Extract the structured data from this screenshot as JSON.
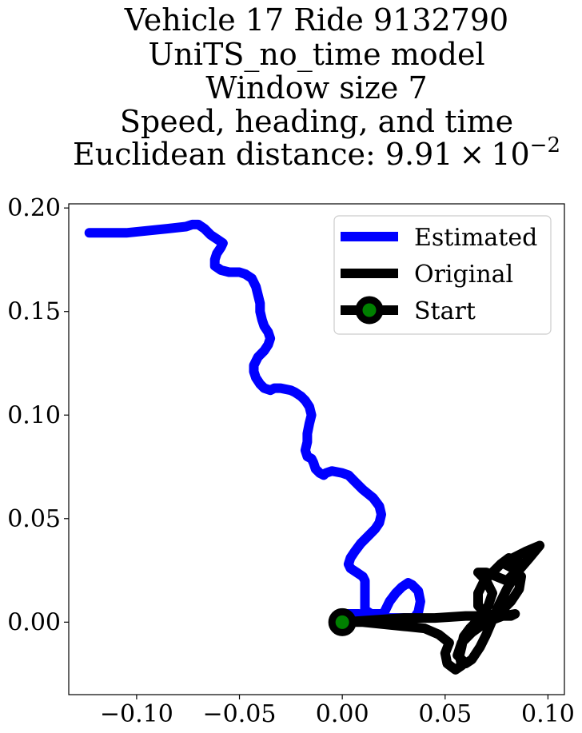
{
  "chart_data": {
    "type": "line",
    "title_lines": [
      "Vehicle 17 Ride 9132790",
      "UniTS_no_time model",
      "Window size 7",
      "Speed, heading, and time"
    ],
    "title_metric_label": "Euclidean distance: ",
    "title_metric_mantissa": "9.91",
    "title_metric_times": "×",
    "title_metric_base": "10",
    "title_metric_exponent": "−2",
    "xlabel": "",
    "ylabel": "",
    "xlim": [
      -0.133,
      0.108
    ],
    "ylim": [
      -0.035,
      0.202
    ],
    "x_ticks": [
      -0.1,
      -0.05,
      0.0,
      0.05,
      0.1
    ],
    "x_tick_labels": [
      "−0.10",
      "−0.05",
      "0.00",
      "0.05",
      "0.10"
    ],
    "y_ticks": [
      0.0,
      0.05,
      0.1,
      0.15,
      0.2
    ],
    "y_tick_labels": [
      "0.00",
      "0.05",
      "0.10",
      "0.15",
      "0.20"
    ],
    "grid": false,
    "legend_position": "top-right",
    "series": [
      {
        "name": "Estimated",
        "color": "#0000ff",
        "points": [
          [
            0,
            0
          ],
          [
            0.001,
            0.003
          ],
          [
            0.003,
            0.004
          ],
          [
            0.008,
            0.004
          ],
          [
            0.012,
            0.003
          ],
          [
            0.018,
            0.002
          ],
          [
            0.025,
            0.002
          ],
          [
            0.03,
            0.002
          ],
          [
            0.035,
            0.002
          ],
          [
            0.037,
            0.005
          ],
          [
            0.038,
            0.01
          ],
          [
            0.037,
            0.015
          ],
          [
            0.034,
            0.018
          ],
          [
            0.032,
            0.019
          ],
          [
            0.029,
            0.017
          ],
          [
            0.026,
            0.014
          ],
          [
            0.023,
            0.01
          ],
          [
            0.021,
            0.006
          ],
          [
            0.02,
            0.004
          ],
          [
            0.014,
            0.004
          ],
          [
            0.011,
            0.006
          ],
          [
            0.011,
            0.012
          ],
          [
            0.011,
            0.02
          ],
          [
            0.01,
            0.022
          ],
          [
            0.007,
            0.024
          ],
          [
            0.004,
            0.026
          ],
          [
            0.003,
            0.028
          ],
          [
            0.004,
            0.031
          ],
          [
            0.006,
            0.034
          ],
          [
            0.009,
            0.038
          ],
          [
            0.013,
            0.042
          ],
          [
            0.016,
            0.045
          ],
          [
            0.018,
            0.048
          ],
          [
            0.019,
            0.052
          ],
          [
            0.018,
            0.056
          ],
          [
            0.015,
            0.06
          ],
          [
            0.01,
            0.064
          ],
          [
            0.006,
            0.068
          ],
          [
            0.003,
            0.071
          ],
          [
            0.0,
            0.072
          ],
          [
            -0.005,
            0.073
          ],
          [
            -0.008,
            0.072
          ],
          [
            -0.009,
            0.071
          ],
          [
            -0.011,
            0.072
          ],
          [
            -0.013,
            0.074
          ],
          [
            -0.014,
            0.077
          ],
          [
            -0.015,
            0.079
          ],
          [
            -0.017,
            0.08
          ],
          [
            -0.018,
            0.083
          ],
          [
            -0.017,
            0.087
          ],
          [
            -0.017,
            0.091
          ],
          [
            -0.016,
            0.096
          ],
          [
            -0.015,
            0.1
          ],
          [
            -0.016,
            0.104
          ],
          [
            -0.018,
            0.107
          ],
          [
            -0.02,
            0.109
          ],
          [
            -0.023,
            0.111
          ],
          [
            -0.025,
            0.112
          ],
          [
            -0.03,
            0.113
          ],
          [
            -0.033,
            0.113
          ],
          [
            -0.035,
            0.112
          ],
          [
            -0.038,
            0.113
          ],
          [
            -0.04,
            0.115
          ],
          [
            -0.042,
            0.118
          ],
          [
            -0.043,
            0.121
          ],
          [
            -0.043,
            0.124
          ],
          [
            -0.041,
            0.128
          ],
          [
            -0.038,
            0.131
          ],
          [
            -0.036,
            0.134
          ],
          [
            -0.035,
            0.137
          ],
          [
            -0.036,
            0.14
          ],
          [
            -0.038,
            0.143
          ],
          [
            -0.039,
            0.146
          ],
          [
            -0.04,
            0.15
          ],
          [
            -0.04,
            0.154
          ],
          [
            -0.041,
            0.158
          ],
          [
            -0.042,
            0.162
          ],
          [
            -0.044,
            0.166
          ],
          [
            -0.047,
            0.168
          ],
          [
            -0.05,
            0.169
          ],
          [
            -0.055,
            0.169
          ],
          [
            -0.059,
            0.17
          ],
          [
            -0.062,
            0.172
          ],
          [
            -0.062,
            0.175
          ],
          [
            -0.061,
            0.178
          ],
          [
            -0.059,
            0.181
          ],
          [
            -0.058,
            0.183
          ],
          [
            -0.061,
            0.185
          ],
          [
            -0.064,
            0.187
          ],
          [
            -0.067,
            0.19
          ],
          [
            -0.07,
            0.192
          ],
          [
            -0.073,
            0.192
          ],
          [
            -0.076,
            0.191
          ],
          [
            -0.085,
            0.19
          ],
          [
            -0.095,
            0.189
          ],
          [
            -0.105,
            0.188
          ],
          [
            -0.114,
            0.188
          ],
          [
            -0.123,
            0.188
          ]
        ]
      },
      {
        "name": "Original",
        "color": "#000000",
        "points": [
          [
            0,
            0
          ],
          [
            0.01,
            0.0
          ],
          [
            0.02,
            -0.001
          ],
          [
            0.03,
            -0.002
          ],
          [
            0.04,
            -0.003
          ],
          [
            0.047,
            -0.006
          ],
          [
            0.052,
            -0.01
          ],
          [
            0.05,
            -0.015
          ],
          [
            0.051,
            -0.02
          ],
          [
            0.055,
            -0.023
          ],
          [
            0.058,
            -0.021
          ],
          [
            0.057,
            -0.016
          ],
          [
            0.058,
            -0.012
          ],
          [
            0.059,
            -0.007
          ],
          [
            0.062,
            -0.003
          ],
          [
            0.067,
            0.002
          ],
          [
            0.071,
            0.008
          ],
          [
            0.073,
            0.014
          ],
          [
            0.07,
            0.02
          ],
          [
            0.066,
            0.024
          ],
          [
            0.07,
            0.024
          ],
          [
            0.075,
            0.022
          ],
          [
            0.08,
            0.02
          ],
          [
            0.084,
            0.024
          ],
          [
            0.086,
            0.029
          ],
          [
            0.081,
            0.031
          ],
          [
            0.077,
            0.028
          ],
          [
            0.073,
            0.024
          ],
          [
            0.069,
            0.02
          ],
          [
            0.066,
            0.014
          ],
          [
            0.066,
            0.008
          ],
          [
            0.071,
            0.003
          ],
          [
            0.077,
            0.005
          ],
          [
            0.082,
            0.01
          ],
          [
            0.086,
            0.016
          ],
          [
            0.087,
            0.022
          ],
          [
            0.083,
            0.026
          ],
          [
            0.079,
            0.028
          ],
          [
            0.083,
            0.031
          ],
          [
            0.089,
            0.034
          ],
          [
            0.096,
            0.037
          ],
          [
            0.091,
            0.031
          ],
          [
            0.085,
            0.024
          ],
          [
            0.08,
            0.016
          ],
          [
            0.076,
            0.008
          ],
          [
            0.073,
            0.001
          ],
          [
            0.07,
            -0.006
          ],
          [
            0.067,
            -0.012
          ],
          [
            0.063,
            -0.018
          ],
          [
            0.06,
            -0.02
          ],
          [
            0.056,
            -0.016
          ],
          [
            0.058,
            -0.01
          ],
          [
            0.063,
            -0.005
          ],
          [
            0.07,
            0.0
          ],
          [
            0.078,
            0.003
          ],
          [
            0.084,
            0.004
          ],
          [
            0.082,
            0.003
          ],
          [
            0.072,
            0.003
          ],
          [
            0.06,
            0.003
          ],
          [
            0.045,
            0.002
          ],
          [
            0.03,
            0.002
          ],
          [
            0.015,
            0.001
          ],
          [
            0.0,
            0.0
          ]
        ]
      }
    ],
    "start_marker": {
      "name": "Start",
      "x": 0.0,
      "y": 0.0,
      "face_color": "#008000",
      "edge_color": "#000000"
    }
  }
}
